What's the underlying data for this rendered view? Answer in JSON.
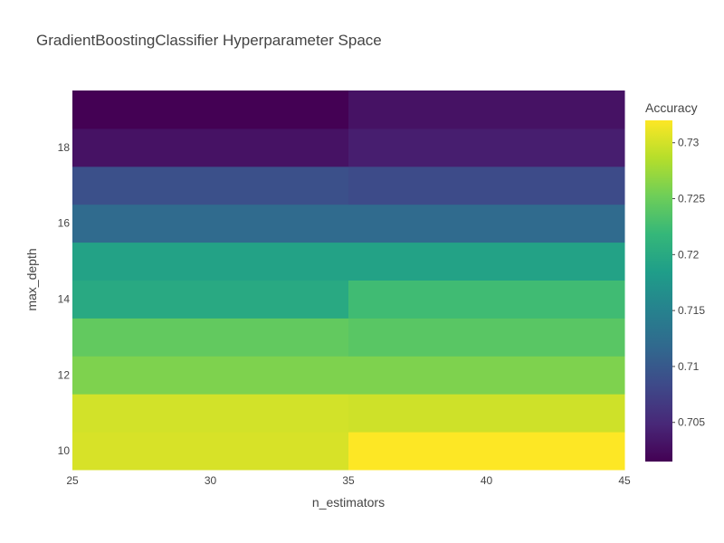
{
  "chart_data": {
    "type": "heatmap",
    "title": "GradientBoostingClassifier Hyperparameter Space",
    "xlabel": "n_estimators",
    "ylabel": "max_depth",
    "x": [
      30,
      40
    ],
    "y": [
      10,
      11,
      12,
      13,
      14,
      15,
      16,
      17,
      18,
      19
    ],
    "x_ticks": [
      25,
      30,
      35,
      40,
      45
    ],
    "y_ticks": [
      10,
      12,
      14,
      16,
      18
    ],
    "xlim": [
      25,
      45
    ],
    "ylim": [
      9.5,
      19.5
    ],
    "z": [
      [
        0.7302,
        0.732
      ],
      [
        0.73,
        0.7298
      ],
      [
        0.726,
        0.726
      ],
      [
        0.7245,
        0.724
      ],
      [
        0.72,
        0.7225
      ],
      [
        0.719,
        0.719
      ],
      [
        0.712,
        0.712
      ],
      [
        0.709,
        0.7085
      ],
      [
        0.703,
        0.704
      ],
      [
        0.7015,
        0.703
      ]
    ],
    "colorscale": "Viridis",
    "colorbar": {
      "title": "Accuracy",
      "range": [
        0.7015,
        0.732
      ],
      "ticks": [
        0.705,
        0.71,
        0.715,
        0.72,
        0.725,
        0.73
      ],
      "tick_labels": [
        "0.705",
        "0.71",
        "0.715",
        "0.72",
        "0.725",
        "0.73"
      ]
    },
    "grid": false
  }
}
